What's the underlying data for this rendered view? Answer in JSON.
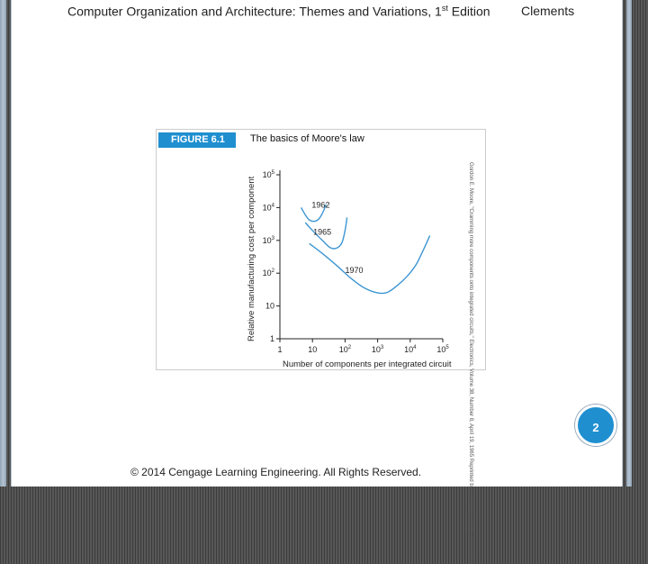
{
  "header": {
    "title_main": "Computer Organization and Architecture: Themes and Variations, 1",
    "title_sup": "st",
    "title_end": " Edition",
    "author": "Clements"
  },
  "figure": {
    "badge": "FIGURE 6.1",
    "title": "The basics of Moore's law",
    "credit": "Gordon E. Moore, \"Cramming more components onto integrated circuits,\" Electronics, Volume 38, Number 8, April 19, 1965 Reprinted by permission of Intel Corporation"
  },
  "chart_data": {
    "type": "line",
    "title": "The basics of Moore's law",
    "xlabel": "Number of components per integrated circuit",
    "ylabel": "Relative manufacturing cost per component",
    "x_scale": "log",
    "y_scale": "log",
    "xlim": [
      1,
      100000
    ],
    "ylim": [
      1,
      100000
    ],
    "x_ticks": [
      {
        "v": 1,
        "base": "1",
        "exp": ""
      },
      {
        "v": 10,
        "base": "10",
        "exp": ""
      },
      {
        "v": 100,
        "base": "10",
        "exp": "2"
      },
      {
        "v": 1000,
        "base": "10",
        "exp": "3"
      },
      {
        "v": 10000,
        "base": "10",
        "exp": "4"
      },
      {
        "v": 100000,
        "base": "10",
        "exp": "5"
      }
    ],
    "y_ticks": [
      {
        "v": 1,
        "base": "1",
        "exp": ""
      },
      {
        "v": 10,
        "base": "10",
        "exp": ""
      },
      {
        "v": 100,
        "base": "10",
        "exp": "2"
      },
      {
        "v": 1000,
        "base": "10",
        "exp": "3"
      },
      {
        "v": 10000,
        "base": "10",
        "exp": "4"
      },
      {
        "v": 100000,
        "base": "10",
        "exp": "5"
      }
    ],
    "series": [
      {
        "name": "1962",
        "label_at": [
          18,
          10000
        ],
        "x": [
          4.5,
          6,
          8,
          11,
          15,
          19,
          23,
          26
        ],
        "y": [
          10000,
          6000,
          4200,
          3800,
          4300,
          6000,
          9000,
          12500
        ]
      },
      {
        "name": "1965",
        "label_at": [
          20,
          1500
        ],
        "x": [
          6,
          10,
          20,
          35,
          55,
          80,
          100,
          115
        ],
        "y": [
          3500,
          2000,
          1000,
          600,
          580,
          850,
          2000,
          5000
        ]
      },
      {
        "name": "1970",
        "label_at": [
          190,
          100
        ],
        "x": [
          8,
          20,
          60,
          150,
          400,
          1000,
          2000,
          4000,
          8000,
          15000,
          25000,
          40000
        ],
        "y": [
          800,
          400,
          160,
          70,
          35,
          25,
          26,
          42,
          80,
          180,
          500,
          1400
        ]
      }
    ],
    "grid": false,
    "legend": "none"
  },
  "slide_number": "2",
  "footer": "© 2014 Cengage Learning Engineering. All Rights Reserved."
}
